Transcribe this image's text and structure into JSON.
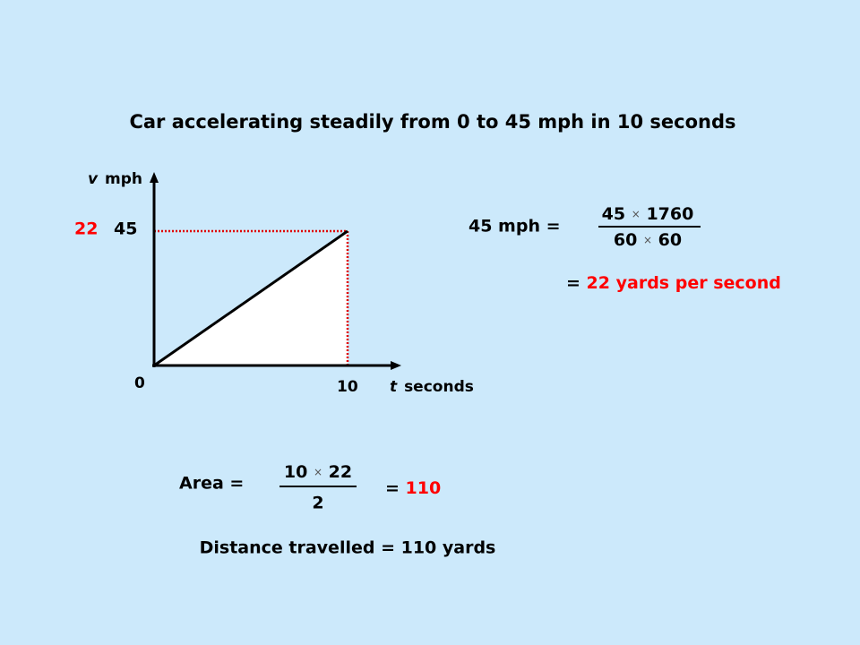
{
  "title": "Car accelerating steadily from 0 to 45 mph in 10 seconds",
  "graph": {
    "y_label_symbol": "v",
    "y_label_unit": "mph",
    "x_label_symbol": "t",
    "x_label_unit": "seconds",
    "origin": "0",
    "x_mark": "10",
    "y_mark": "45",
    "y_mark_yards": "22"
  },
  "conversion": {
    "lhs": "45 mph =",
    "numerator": [
      "45",
      "1760"
    ],
    "denominator": [
      "60",
      "60"
    ],
    "times": "×",
    "result_eq": "=",
    "result_value": "22",
    "result_unit": "yards per second"
  },
  "area": {
    "lhs": "Area =",
    "numerator": [
      "10",
      "22"
    ],
    "denominator": "2",
    "result_eq": "=",
    "result_value": "110"
  },
  "distance": "Distance travelled = 110 yards"
}
